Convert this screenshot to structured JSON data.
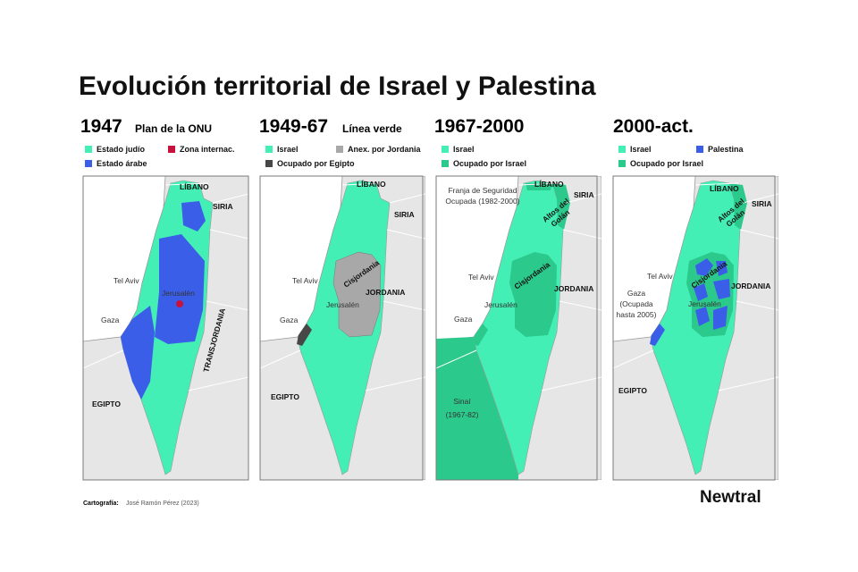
{
  "title": "Evolución territorial de Israel y Palestina",
  "panels": [
    {
      "year": "1947",
      "subtitle": "Plan de la ONU",
      "legend": [
        {
          "label": "Estado judío",
          "color": "#44efb6"
        },
        {
          "label": "Zona internac.",
          "color": "#c8123c"
        },
        {
          "label": "Estado árabe",
          "color": "#3b5ee8"
        }
      ],
      "labels": [
        "LÍBANO",
        "SIRIA",
        "Tel Aviv",
        "Jerusalén",
        "Gaza",
        "TRANSJORDANIA",
        "EGIPTO"
      ]
    },
    {
      "year": "1949-67",
      "subtitle": "Línea verde",
      "legend": [
        {
          "label": "Israel",
          "color": "#44efb6"
        },
        {
          "label": "Anex. por Jordania",
          "color": "#a8a8a8"
        },
        {
          "label": "Ocupado por Egipto",
          "color": "#474747"
        }
      ],
      "labels": [
        "LÍBANO",
        "SIRIA",
        "Tel Aviv",
        "Cisjordania",
        "JORDANIA",
        "Gaza",
        "Jerusalén",
        "EGIPTO"
      ]
    },
    {
      "year": "1967-2000",
      "legend": [
        {
          "label": "Israel",
          "color": "#44efb6"
        },
        {
          "label": "Ocupado por Israel",
          "color": "#2cc98c"
        }
      ],
      "labels": [
        [
          "Franja de Seguridad",
          "Ocupada (1982-2000)"
        ],
        "LÍBANO",
        "SIRIA",
        [
          "Altos del",
          "Golán"
        ],
        "Tel Aviv",
        "Cisjordania",
        "JORDANIA",
        "Gaza",
        "Jerusalén",
        [
          "Sinaí",
          "(1967-82)"
        ]
      ]
    },
    {
      "year": "2000-act.",
      "legend": [
        {
          "label": "Israel",
          "color": "#44efb6"
        },
        {
          "label": "Palestina",
          "color": "#3b5ee8"
        },
        {
          "label": "Ocupado por Israel",
          "color": "#2cc98c"
        }
      ],
      "labels": [
        "LÍBANO",
        "SIRIA",
        [
          "Altos del",
          "Golán"
        ],
        "Tel Aviv",
        "Cisjordania",
        "JORDANIA",
        [
          "Gaza",
          "(Ocupada",
          "hasta 2005)"
        ],
        "Jerusalén",
        "EGIPTO"
      ]
    }
  ],
  "footer": {
    "label": "Cartografía:",
    "author": "José Ramón Pérez (2023)"
  },
  "logo": "Newtral"
}
